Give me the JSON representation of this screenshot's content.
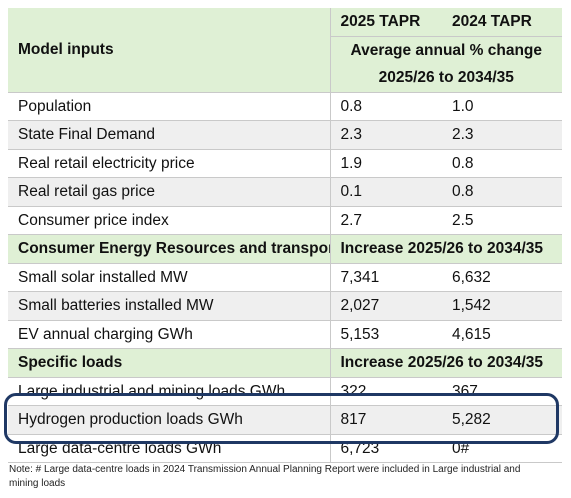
{
  "header": {
    "col2_label": "2025 TAPR",
    "col3_label": "2024 TAPR",
    "model_inputs_label": "Model inputs",
    "subhead_line1": "Average annual % change",
    "subhead_line2": "2025/26 to 2034/35"
  },
  "model_rows": [
    {
      "label": "Population",
      "v2025": "0.8",
      "v2024": "1.0"
    },
    {
      "label": "State Final Demand",
      "v2025": "2.3",
      "v2024": "2.3"
    },
    {
      "label": "Real retail electricity price",
      "v2025": "1.9",
      "v2024": "0.8"
    },
    {
      "label": "Real retail gas price",
      "v2025": "0.1",
      "v2024": "0.8"
    },
    {
      "label": "Consumer price index",
      "v2025": "2.7",
      "v2024": "2.5"
    }
  ],
  "section_cer": {
    "label": "Consumer Energy Resources and transport",
    "subhead": "Increase 2025/26 to 2034/35"
  },
  "cer_rows": [
    {
      "label": "Small solar installed MW",
      "v2025": "7,341",
      "v2024": "6,632"
    },
    {
      "label": "Small batteries installed MW",
      "v2025": "2,027",
      "v2024": "1,542"
    },
    {
      "label": "EV annual charging GWh",
      "v2025": "5,153",
      "v2024": "4,615"
    }
  ],
  "section_loads": {
    "label": "Specific loads",
    "subhead": "Increase 2025/26 to 2034/35"
  },
  "load_rows": [
    {
      "label": "Large industrial and mining loads GWh",
      "v2025": "322",
      "v2024": "367"
    },
    {
      "label": "Hydrogen production loads GWh",
      "v2025": "817",
      "v2024": "5,282"
    },
    {
      "label": "Large data-centre loads GWh",
      "v2025": "6,723",
      "v2024": "0#"
    }
  ],
  "highlight_color": "#1f3864",
  "header_bg_color": "#dff0d5",
  "note": "Note: # Large data-centre loads in 2024 Transmission Annual Planning Report were included in Large industrial and mining loads"
}
